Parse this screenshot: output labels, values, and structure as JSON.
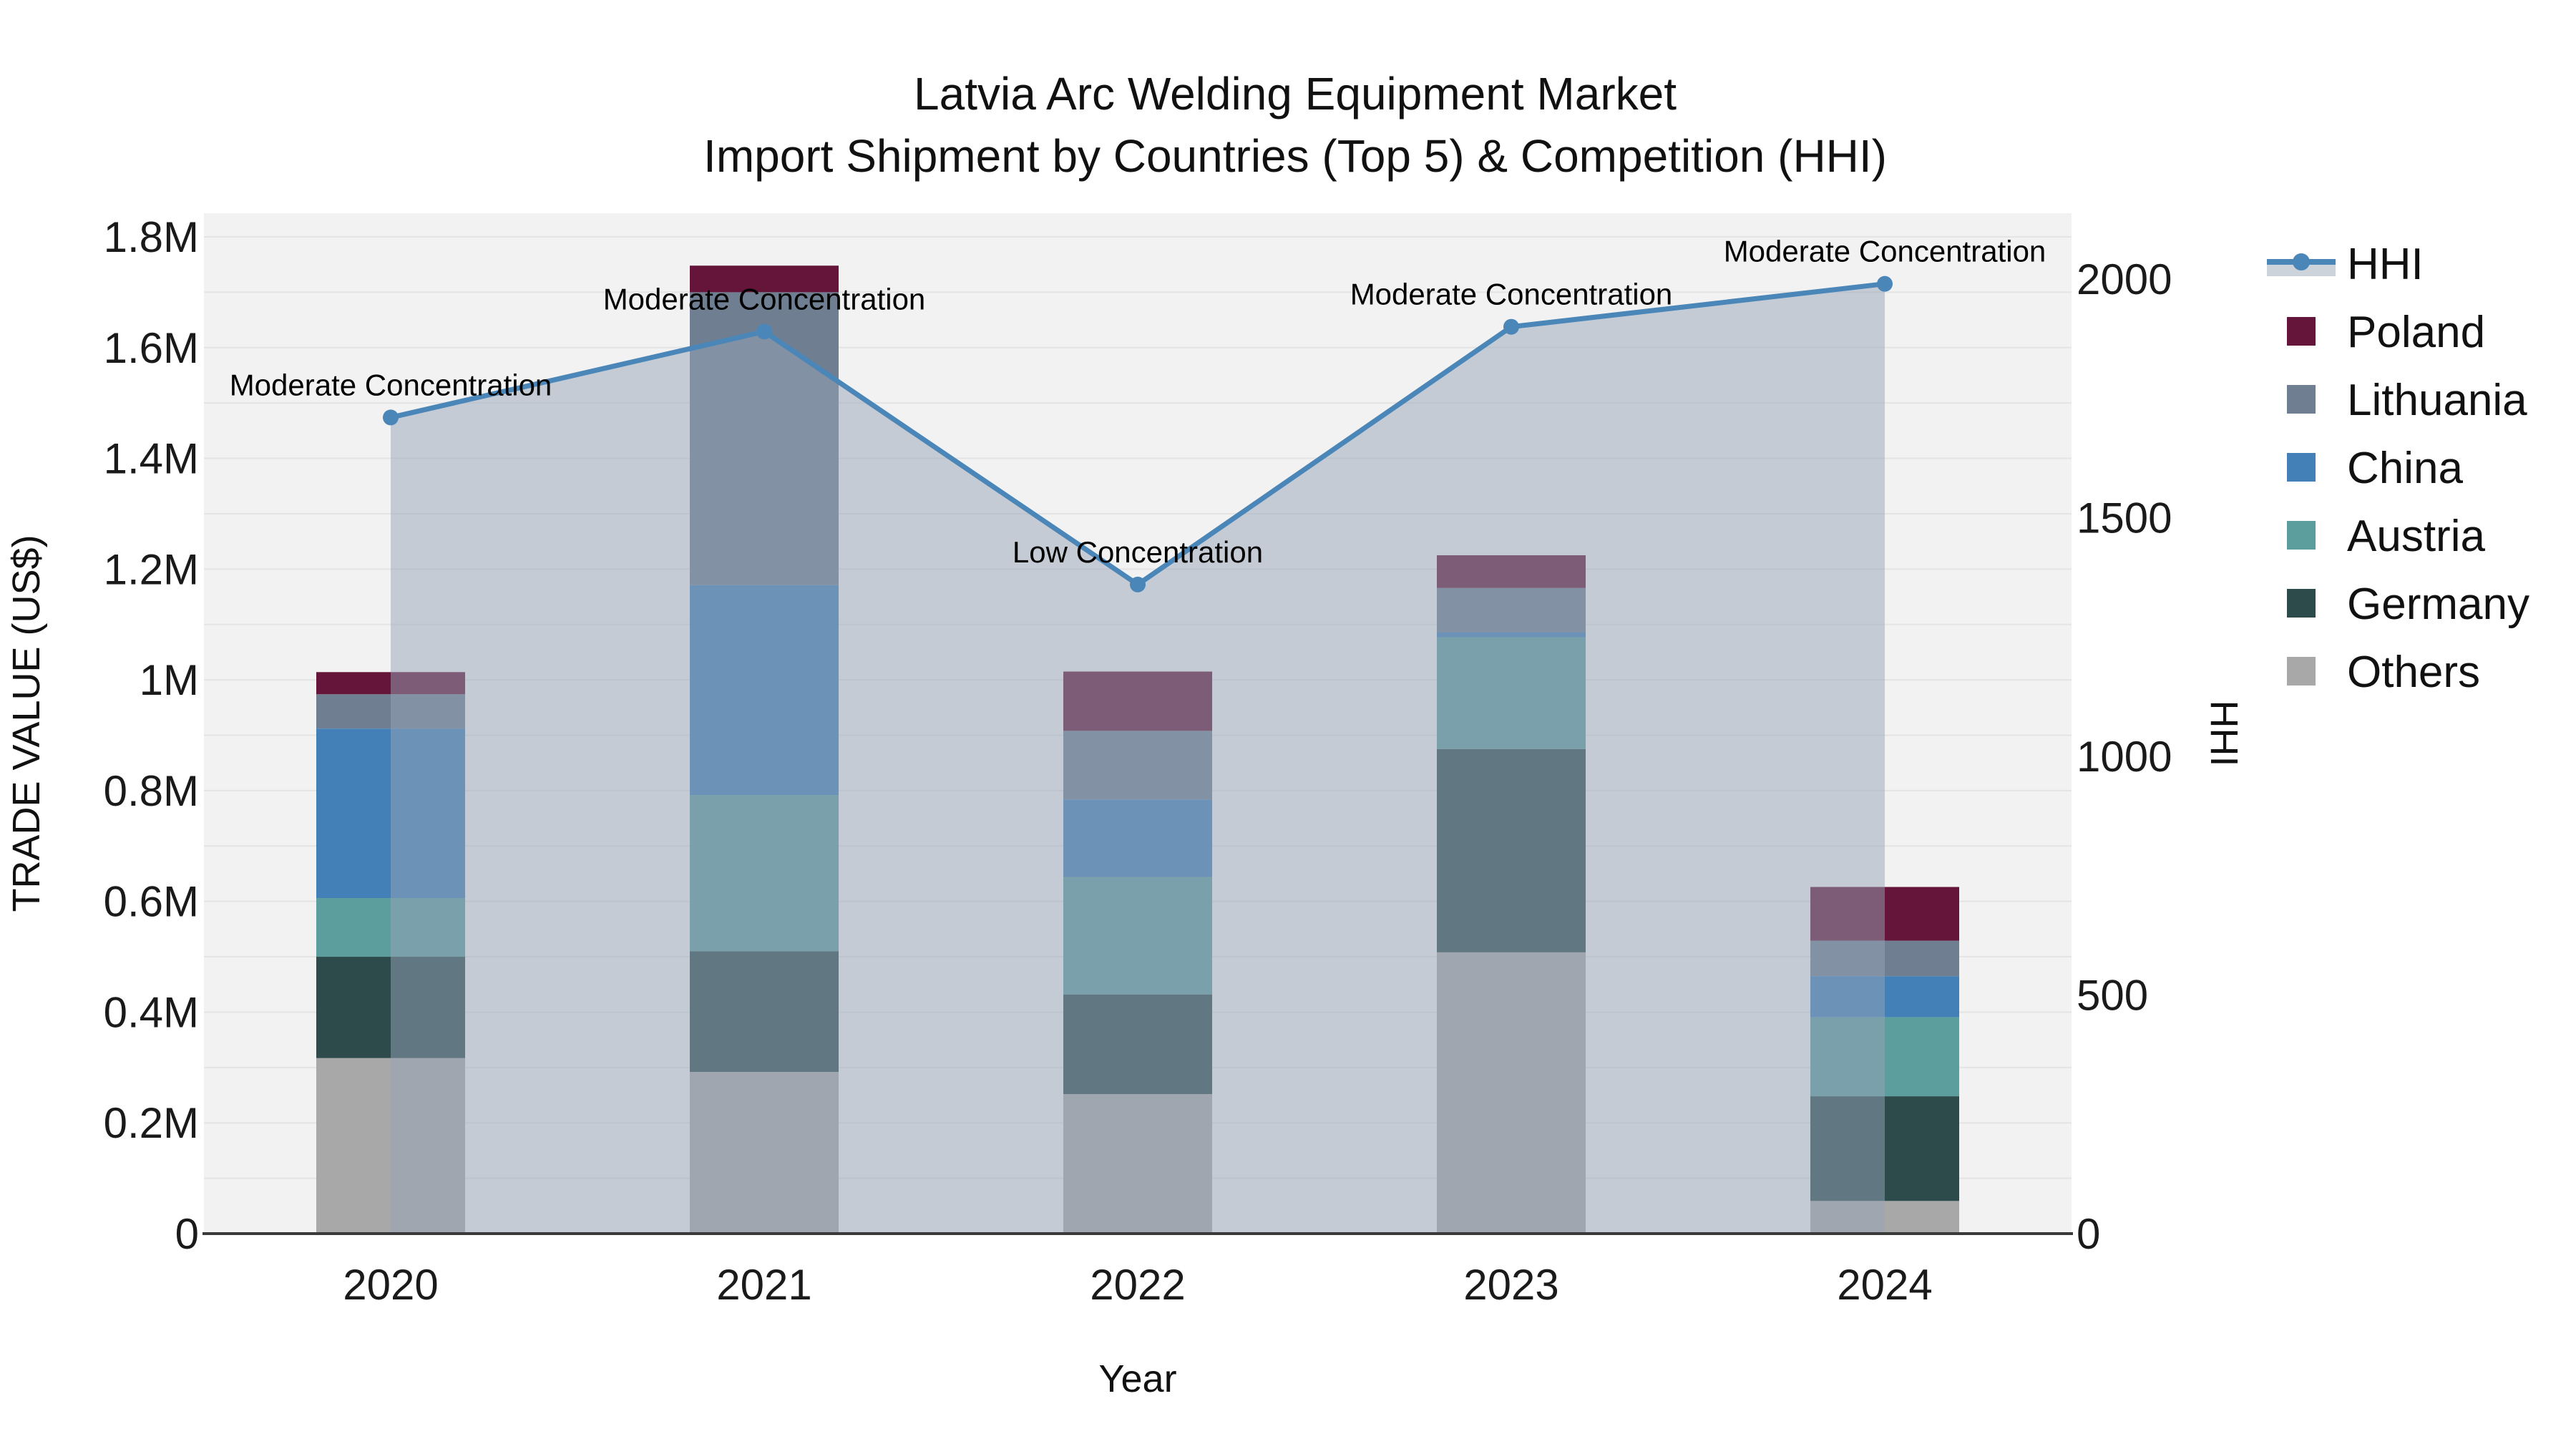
{
  "title": {
    "line1": "Latvia Arc Welding Equipment Market",
    "line2": "Import Shipment by Countries (Top 5) & Competition (HHI)"
  },
  "axes": {
    "left": {
      "label": "TRADE VALUE (US$)",
      "ticks": [
        {
          "value": 0,
          "label": "0"
        },
        {
          "value": 200000,
          "label": "0.2M"
        },
        {
          "value": 400000,
          "label": "0.4M"
        },
        {
          "value": 600000,
          "label": "0.6M"
        },
        {
          "value": 800000,
          "label": "0.8M"
        },
        {
          "value": 1000000,
          "label": "1M"
        },
        {
          "value": 1200000,
          "label": "1.2M"
        },
        {
          "value": 1400000,
          "label": "1.4M"
        },
        {
          "value": 1600000,
          "label": "1.6M"
        },
        {
          "value": 1800000,
          "label": "1.8M"
        }
      ]
    },
    "right": {
      "label": "HHI",
      "ticks": [
        {
          "value": 0,
          "label": "0"
        },
        {
          "value": 500,
          "label": "500"
        },
        {
          "value": 1000,
          "label": "1000"
        },
        {
          "value": 1500,
          "label": "1500"
        },
        {
          "value": 2000,
          "label": "2000"
        }
      ]
    },
    "x": {
      "label": "Year"
    }
  },
  "legend": {
    "items": [
      {
        "id": "hhi",
        "label": "HHI",
        "type": "line",
        "color": "#4a86b8",
        "band_color": "#ccd3da"
      },
      {
        "id": "poland",
        "label": "Poland",
        "type": "swatch",
        "color": "#641539"
      },
      {
        "id": "lithuania",
        "label": "Lithuania",
        "type": "swatch",
        "color": "#6f7f91"
      },
      {
        "id": "china",
        "label": "China",
        "type": "swatch",
        "color": "#4380b8"
      },
      {
        "id": "austria",
        "label": "Austria",
        "type": "swatch",
        "color": "#5c9d9e"
      },
      {
        "id": "germany",
        "label": "Germany",
        "type": "swatch",
        "color": "#2d4b4a"
      },
      {
        "id": "others",
        "label": "Others",
        "type": "swatch",
        "color": "#a8a8a8"
      }
    ]
  },
  "chart_data": {
    "type": "combo-stacked-bar-line",
    "title": "Latvia Arc Welding Equipment Market — Import Shipment by Countries (Top 5) & Competition (HHI)",
    "categories": [
      "2020",
      "2021",
      "2022",
      "2023",
      "2024"
    ],
    "xlabel": "Year",
    "ylabel_left": "TRADE VALUE (US$)",
    "ylabel_right": "HHI",
    "ylim_left": [
      0,
      1800000
    ],
    "ylim_right": [
      0,
      2000
    ],
    "bar_unit": "US$",
    "bar_series": [
      {
        "name": "Poland",
        "color": "#641539",
        "values": [
          40000,
          48000,
          107000,
          59000,
          97000
        ]
      },
      {
        "name": "Lithuania",
        "color": "#6f7f91",
        "values": [
          62000,
          529000,
          124000,
          80000,
          64000
        ]
      },
      {
        "name": "China",
        "color": "#4380b8",
        "values": [
          306000,
          379000,
          140000,
          9000,
          74000
        ]
      },
      {
        "name": "Austria",
        "color": "#5c9d9e",
        "values": [
          106000,
          282000,
          212000,
          202000,
          143000
        ]
      },
      {
        "name": "Germany",
        "color": "#2d4b4a",
        "values": [
          183000,
          218000,
          180000,
          367000,
          189000
        ]
      },
      {
        "name": "Others",
        "color": "#a8a8a8",
        "values": [
          317000,
          292000,
          252000,
          508000,
          59000
        ]
      }
    ],
    "bar_totals": [
      1014000,
      1748000,
      1015000,
      1225000,
      626000
    ],
    "stack_order_bottom_to_top": [
      "Others",
      "Germany",
      "Austria",
      "China",
      "Lithuania",
      "Poland"
    ],
    "line_series": {
      "name": "HHI",
      "color": "#4a86b8",
      "fill_color": "rgba(150,163,183,0.5)",
      "values": [
        1710,
        1890,
        1360,
        1900,
        1990
      ],
      "annotations": [
        "Moderate Concentration",
        "Moderate Concentration",
        "Low Concentration",
        "Moderate Concentration",
        "Moderate Concentration"
      ]
    },
    "grid": {
      "step_left": 100000,
      "color": "#e4e4e4",
      "visible": true
    },
    "legend_position": "right"
  },
  "colors": {
    "plot_bg": "#f2f2f2",
    "page_bg": "#ffffff",
    "axis_line": "#3a3a3a",
    "text": "#111111"
  }
}
